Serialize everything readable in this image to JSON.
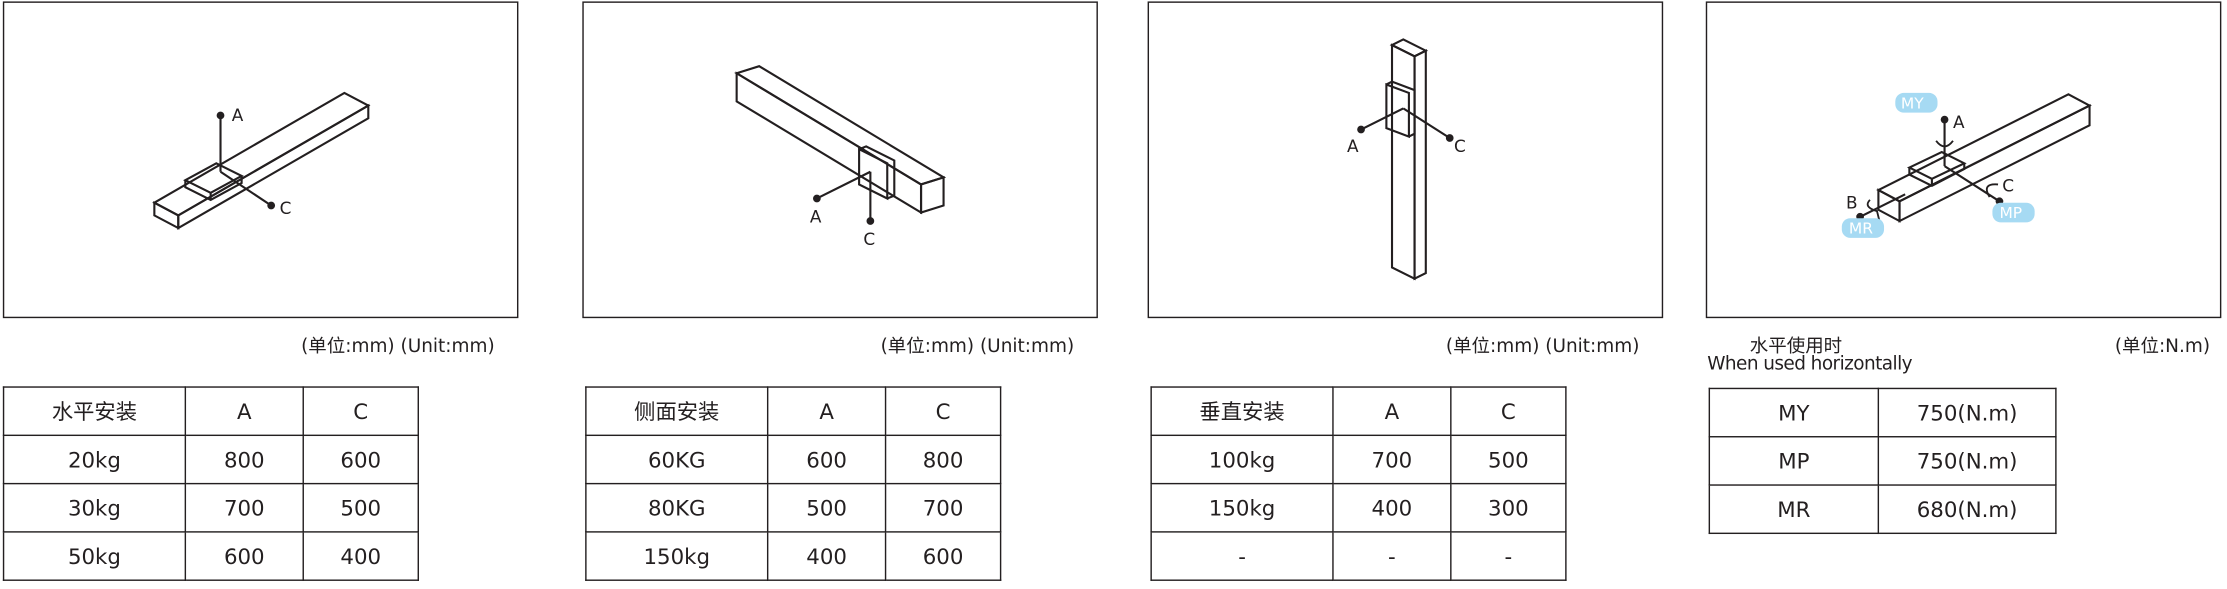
{
  "panels": [
    {
      "unit": "(单位:mm) (Unit:mm)",
      "labels": {
        "a": "A",
        "c": "C"
      },
      "table": {
        "headers": [
          "水平安装",
          "A",
          "C"
        ],
        "rows": [
          [
            "20kg",
            "800",
            "600"
          ],
          [
            "30kg",
            "700",
            "500"
          ],
          [
            "50kg",
            "600",
            "400"
          ]
        ]
      }
    },
    {
      "unit": "(单位:mm) (Unit:mm)",
      "labels": {
        "a": "A",
        "c": "C"
      },
      "table": {
        "headers": [
          "侧面安装",
          "A",
          "C"
        ],
        "rows": [
          [
            "60KG",
            "600",
            "800"
          ],
          [
            "80KG",
            "500",
            "700"
          ],
          [
            "150kg",
            "400",
            "600"
          ]
        ]
      }
    },
    {
      "unit": "(单位:mm) (Unit:mm)",
      "labels": {
        "a": "A",
        "c": "C"
      },
      "table": {
        "headers": [
          "垂直安装",
          "A",
          "C"
        ],
        "rows": [
          [
            "100kg",
            "700",
            "500"
          ],
          [
            "150kg",
            "400",
            "300"
          ],
          [
            "-",
            "-",
            "-"
          ]
        ]
      }
    },
    {
      "unit": "(单位:N.m)",
      "caption_cn": "水平使用时",
      "caption_en": "When used horizontally",
      "labels": {
        "a": "A",
        "b": "B",
        "c": "C",
        "my": "MY",
        "mp": "MP",
        "mr": "MR"
      },
      "table": {
        "rows": [
          [
            "MY",
            "750(N.m)"
          ],
          [
            "MP",
            "750(N.m)"
          ],
          [
            "MR",
            "680(N.m)"
          ]
        ]
      }
    }
  ],
  "colors": {
    "line": "#231f20",
    "moment_label_bg": "#a6daf3"
  }
}
